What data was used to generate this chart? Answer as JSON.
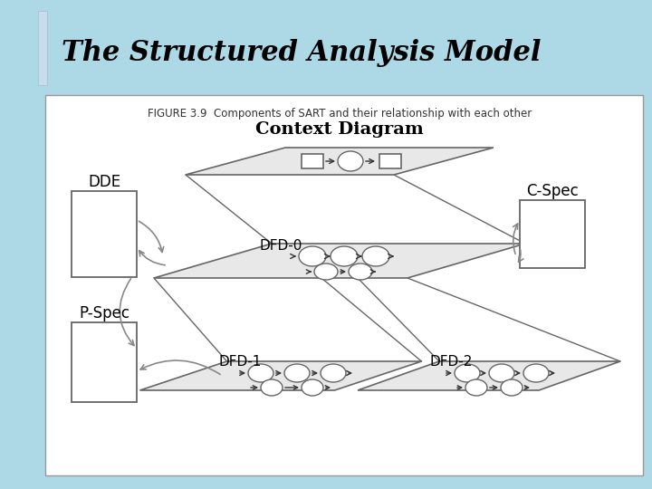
{
  "title": "The Structured Analysis Model",
  "figure_caption": "FIGURE 3.9  Components of SART and their relationship with each other",
  "context_diagram_label": "Context Diagram",
  "dfd0_label": "DFD-0",
  "dfd1_label": "DFD-1",
  "dfd2_label": "DFD-2",
  "dde_label": "DDE",
  "cspec_label": "C-Spec",
  "pspec_label": "P-Spec",
  "bg_color": "#ADD8E6",
  "diagram_bg": "#FFFFFF",
  "title_color": "#000000",
  "line_color": "#666666",
  "para_fill": "#E8E8E8",
  "title_fontsize": 22,
  "caption_fontsize": 8.5,
  "label_fontsize": 11,
  "ctx_label_fontsize": 14
}
